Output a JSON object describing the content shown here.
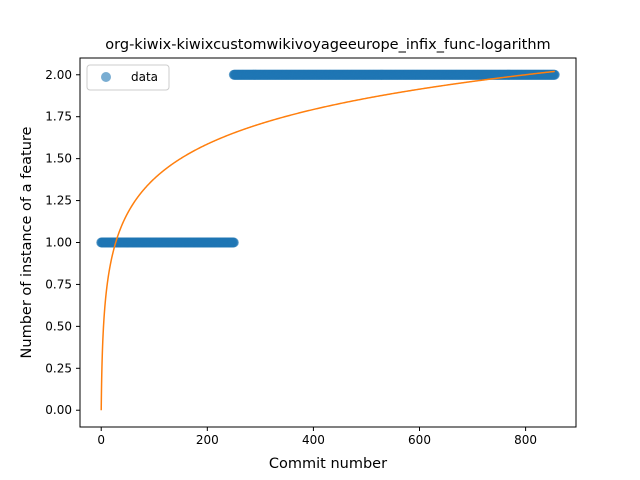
{
  "chart_data": {
    "type": "scatter",
    "title": "org-kiwix-kiwixcustomwikivoyageeurope_infix_func-logarithm",
    "xlabel": "Commit number",
    "ylabel": "Number of instance of a feature",
    "xlim": [
      -40,
      895
    ],
    "ylim": [
      -0.1,
      2.1
    ],
    "xticks": [
      0,
      200,
      400,
      600,
      800
    ],
    "yticks": [
      0.0,
      0.25,
      0.5,
      0.75,
      1.0,
      1.25,
      1.5,
      1.75,
      2.0
    ],
    "xtick_labels": [
      "0",
      "200",
      "400",
      "600",
      "800"
    ],
    "ytick_labels": [
      "0.00",
      "0.25",
      "0.50",
      "0.75",
      "1.00",
      "1.25",
      "1.50",
      "1.75",
      "2.00"
    ],
    "grid": false,
    "legend_position": "top-left",
    "series": [
      {
        "name": "data",
        "kind": "points",
        "color": "#1f77b4",
        "segments": [
          {
            "x_start": 0,
            "x_end": 250,
            "y": 1.0
          },
          {
            "x_start": 250,
            "x_end": 855,
            "y": 2.0
          }
        ]
      },
      {
        "kind": "fit-line",
        "color": "#ff7f0e",
        "model": "logarithm",
        "x_start": 0,
        "x_end": 855,
        "y_at_start": 0.0,
        "y_at_end": 2.02
      }
    ]
  }
}
